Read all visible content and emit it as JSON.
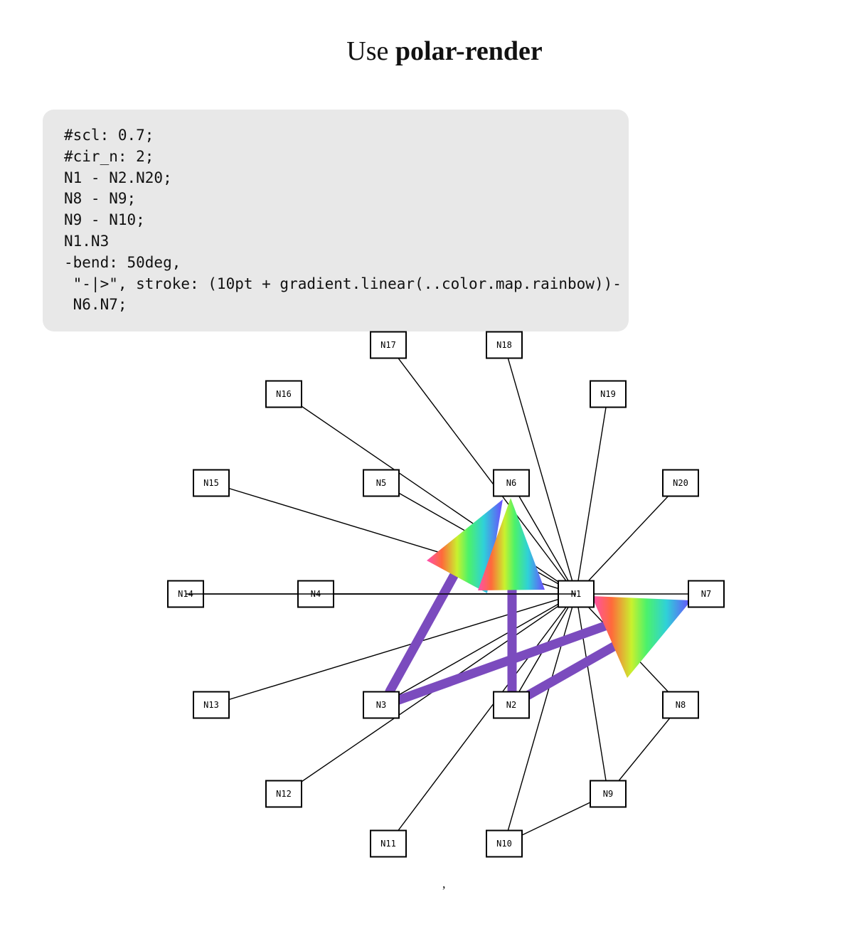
{
  "title": {
    "prefix": "Use",
    "bold": "polar-render"
  },
  "code_lines": [
    "#scl: 0.7;",
    "#cir_n: 2;",
    "N1 - N2.N20;",
    "N8 - N9;",
    "N9 - N10;",
    "N1.N3",
    "-bend: 50deg,",
    " \"-|>\", stroke: (10pt + gradient.linear(..color.map.rainbow))-",
    " N6.N7;"
  ],
  "nodes": [
    "N1",
    "N2",
    "N3",
    "N4",
    "N5",
    "N6",
    "N7",
    "N8",
    "N9",
    "N10",
    "N11",
    "N12",
    "N13",
    "N14",
    "N15",
    "N16",
    "N17",
    "N18",
    "N19",
    "N20"
  ],
  "edges": [
    [
      "N1",
      "N2"
    ],
    [
      "N1",
      "N3"
    ],
    [
      "N1",
      "N4"
    ],
    [
      "N1",
      "N5"
    ],
    [
      "N1",
      "N6"
    ],
    [
      "N1",
      "N7"
    ],
    [
      "N1",
      "N8"
    ],
    [
      "N1",
      "N9"
    ],
    [
      "N1",
      "N10"
    ],
    [
      "N1",
      "N11"
    ],
    [
      "N1",
      "N12"
    ],
    [
      "N1",
      "N13"
    ],
    [
      "N1",
      "N14"
    ],
    [
      "N1",
      "N15"
    ],
    [
      "N1",
      "N16"
    ],
    [
      "N1",
      "N17"
    ],
    [
      "N1",
      "N18"
    ],
    [
      "N1",
      "N19"
    ],
    [
      "N1",
      "N20"
    ],
    [
      "N8",
      "N9"
    ],
    [
      "N9",
      "N10"
    ]
  ],
  "styled_edges": [
    [
      "N1",
      "N6"
    ],
    [
      "N1",
      "N7"
    ],
    [
      "N3",
      "N6"
    ],
    [
      "N3",
      "N7"
    ]
  ],
  "styled_edge_color": "#7b4bbe",
  "footer": ","
}
